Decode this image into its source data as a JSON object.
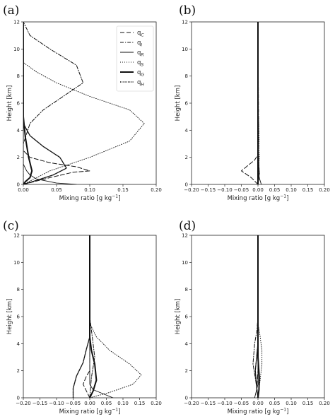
{
  "chart_data": [
    {
      "type": "line",
      "panel_label": "(a)",
      "xlabel": "Mixing ratio [g kg",
      "xlabel_sup": "−1",
      "xlabel_end": "]",
      "ylabel": "Height [km]",
      "xlim": [
        0.0,
        0.2
      ],
      "ylim": [
        0,
        12
      ],
      "xticks": [
        0.0,
        0.05,
        0.1,
        0.15,
        0.2
      ],
      "xtick_labels": [
        "0.00",
        "0.05",
        "0.10",
        "0.15",
        "0.20"
      ],
      "yticks": [
        0,
        2,
        4,
        6,
        8,
        10,
        12
      ],
      "ytick_labels": [
        "0",
        "2",
        "4",
        "6",
        "8",
        "10",
        "12"
      ],
      "legend": "top-right",
      "series": [
        {
          "name": "q",
          "sub": "C",
          "style": "dashed",
          "points": [
            [
              0.0,
              0
            ],
            [
              0.04,
              0.5
            ],
            [
              0.075,
              0.9
            ],
            [
              0.1,
              1.0
            ],
            [
              0.08,
              1.3
            ],
            [
              0.04,
              1.6
            ],
            [
              0.01,
              2.0
            ],
            [
              0.0,
              2.5
            ],
            [
              0.0,
              12
            ]
          ]
        },
        {
          "name": "q",
          "sub": "I",
          "style": "dashdot",
          "points": [
            [
              0.0,
              0
            ],
            [
              0.0,
              3
            ],
            [
              0.01,
              4.5
            ],
            [
              0.03,
              5.5
            ],
            [
              0.06,
              6.5
            ],
            [
              0.09,
              7.5
            ],
            [
              0.08,
              8.8
            ],
            [
              0.04,
              10.0
            ],
            [
              0.01,
              11.0
            ],
            [
              0.0,
              12
            ]
          ]
        },
        {
          "name": "q",
          "sub": "R",
          "style": "solid-thin",
          "points": [
            [
              0.08,
              0
            ],
            [
              0.05,
              0.1
            ],
            [
              0.02,
              0.4
            ],
            [
              0.01,
              0.7
            ],
            [
              0.005,
              1.0
            ],
            [
              0.0,
              1.5
            ],
            [
              0.0,
              12
            ]
          ]
        },
        {
          "name": "q",
          "sub": "S",
          "style": "dotted",
          "points": [
            [
              0.0,
              0
            ],
            [
              0.04,
              1.0
            ],
            [
              0.1,
              2.0
            ],
            [
              0.16,
              3.2
            ],
            [
              0.182,
              4.5
            ],
            [
              0.16,
              5.5
            ],
            [
              0.1,
              6.5
            ],
            [
              0.05,
              7.5
            ],
            [
              0.02,
              8.3
            ],
            [
              0.0,
              9.0
            ],
            [
              0.0,
              12
            ]
          ]
        },
        {
          "name": "q",
          "sub": "G",
          "style": "solid-thick",
          "points": [
            [
              0.0,
              0
            ],
            [
              0.003,
              0.2
            ],
            [
              0.01,
              0.5
            ],
            [
              0.013,
              1.0
            ],
            [
              0.008,
              2.0
            ],
            [
              0.003,
              3.5
            ],
            [
              0.0,
              5.0
            ],
            [
              0.0,
              12
            ]
          ]
        },
        {
          "name": "q",
          "sub": "H",
          "style": "densedot",
          "points": [
            [
              0.0,
              0
            ],
            [
              0.02,
              0.3
            ],
            [
              0.045,
              0.7
            ],
            [
              0.065,
              1.2
            ],
            [
              0.055,
              2.0
            ],
            [
              0.03,
              2.8
            ],
            [
              0.01,
              3.6
            ],
            [
              0.0,
              4.5
            ],
            [
              0.0,
              12
            ]
          ]
        }
      ]
    },
    {
      "type": "line",
      "panel_label": "(b)",
      "xlabel": "Mixing ratio [g kg",
      "xlabel_sup": "−1",
      "xlabel_end": "]",
      "ylabel": "Height [km]",
      "xlim": [
        -0.2,
        0.2
      ],
      "ylim": [
        0,
        12
      ],
      "xticks": [
        -0.2,
        -0.15,
        -0.1,
        -0.05,
        0.0,
        0.05,
        0.1,
        0.15,
        0.2
      ],
      "xtick_labels": [
        "−0.20",
        "−0.15",
        "−0.10",
        "−0.05",
        "0.00",
        "0.05",
        "0.10",
        "0.15",
        "0.20"
      ],
      "yticks": [
        0,
        2,
        4,
        6,
        8,
        10,
        12
      ],
      "ytick_labels": [
        "0",
        "2",
        "4",
        "6",
        "8",
        "10",
        "12"
      ],
      "series": [
        {
          "name": "q",
          "sub": "C",
          "style": "dashed",
          "points": [
            [
              0.0,
              0
            ],
            [
              -0.02,
              0.5
            ],
            [
              -0.05,
              1.0
            ],
            [
              -0.03,
              1.4
            ],
            [
              -0.01,
              1.8
            ],
            [
              0.0,
              2.2
            ],
            [
              0.0,
              12
            ]
          ]
        },
        {
          "name": "q",
          "sub": "I",
          "style": "dashdot",
          "points": [
            [
              0.0,
              0
            ],
            [
              0.002,
              4
            ],
            [
              0.0,
              12
            ]
          ]
        },
        {
          "name": "q",
          "sub": "R",
          "style": "solid-thin",
          "points": [
            [
              0.01,
              0
            ],
            [
              0.005,
              0.4
            ],
            [
              0.0,
              1.0
            ],
            [
              0.0,
              12
            ]
          ]
        },
        {
          "name": "q",
          "sub": "S",
          "style": "dotted",
          "points": [
            [
              0.0,
              0
            ],
            [
              0.004,
              2.0
            ],
            [
              0.003,
              4.0
            ],
            [
              0.0,
              6.0
            ],
            [
              0.0,
              12
            ]
          ]
        },
        {
          "name": "q",
          "sub": "G",
          "style": "solid-thick",
          "points": [
            [
              0.0,
              0
            ],
            [
              0.0,
              12
            ]
          ]
        },
        {
          "name": "q",
          "sub": "H",
          "style": "densedot",
          "points": [
            [
              0.0,
              0
            ],
            [
              0.004,
              0.8
            ],
            [
              0.002,
              1.6
            ],
            [
              0.0,
              3.0
            ],
            [
              0.0,
              12
            ]
          ]
        }
      ]
    },
    {
      "type": "line",
      "panel_label": "(c)",
      "xlabel": "Mixing ratio [g kg",
      "xlabel_sup": "−1",
      "xlabel_end": "]",
      "ylabel": "Height [km]",
      "xlim": [
        -0.2,
        0.2
      ],
      "ylim": [
        0,
        12
      ],
      "xticks": [
        -0.2,
        -0.15,
        -0.1,
        -0.05,
        0.0,
        0.05,
        0.1,
        0.15,
        0.2
      ],
      "xtick_labels": [
        "−0.20",
        "−0.15",
        "−0.10",
        "−0.05",
        "0.00",
        "0.05",
        "0.10",
        "0.15",
        "0.20"
      ],
      "yticks": [
        0,
        2,
        4,
        6,
        8,
        10,
        12
      ],
      "ytick_labels": [
        "0",
        "2",
        "4",
        "6",
        "8",
        "10",
        "12"
      ],
      "series": [
        {
          "name": "q",
          "sub": "C",
          "style": "dashed",
          "points": [
            [
              0.0,
              0
            ],
            [
              -0.01,
              0.5
            ],
            [
              -0.02,
              1.0
            ],
            [
              -0.01,
              1.6
            ],
            [
              0.0,
              2.0
            ],
            [
              0.0,
              12
            ]
          ]
        },
        {
          "name": "q",
          "sub": "I",
          "style": "dashdot",
          "points": [
            [
              0.0,
              0
            ],
            [
              0.005,
              1.5
            ],
            [
              0.015,
              3.0
            ],
            [
              0.01,
              4.0
            ],
            [
              0.005,
              5.0
            ],
            [
              0.0,
              6.0
            ],
            [
              0.0,
              12
            ]
          ]
        },
        {
          "name": "q",
          "sub": "R",
          "style": "solid-thin",
          "points": [
            [
              0.07,
              0
            ],
            [
              0.04,
              0.3
            ],
            [
              0.01,
              0.6
            ],
            [
              0.0,
              1.0
            ],
            [
              0.0,
              12
            ]
          ]
        },
        {
          "name": "q",
          "sub": "S",
          "style": "dotted",
          "points": [
            [
              0.0,
              0
            ],
            [
              0.06,
              0.4
            ],
            [
              0.13,
              1.0
            ],
            [
              0.155,
              1.7
            ],
            [
              0.12,
              2.5
            ],
            [
              0.06,
              3.5
            ],
            [
              0.02,
              4.5
            ],
            [
              0.0,
              5.5
            ],
            [
              0.0,
              12
            ]
          ]
        },
        {
          "name": "q",
          "sub": "G",
          "style": "solid-thick",
          "points": [
            [
              0.0,
              0
            ],
            [
              0.01,
              0.5
            ],
            [
              0.02,
              1.3
            ],
            [
              0.015,
              2.5
            ],
            [
              0.005,
              3.5
            ],
            [
              0.0,
              4.5
            ],
            [
              0.0,
              12
            ]
          ]
        },
        {
          "name": "q",
          "sub": "H",
          "style": "densedot",
          "points": [
            [
              -0.05,
              0
            ],
            [
              -0.05,
              0.7
            ],
            [
              -0.04,
              1.6
            ],
            [
              -0.02,
              2.6
            ],
            [
              -0.01,
              3.6
            ],
            [
              0.0,
              4.5
            ],
            [
              0.0,
              12
            ]
          ]
        }
      ]
    },
    {
      "type": "line",
      "panel_label": "(d)",
      "xlabel": "Mixing ratio [g kg",
      "xlabel_sup": "−1",
      "xlabel_end": "]",
      "ylabel": "Height [km]",
      "xlim": [
        -0.2,
        0.2
      ],
      "ylim": [
        0,
        12
      ],
      "xticks": [
        -0.2,
        -0.15,
        -0.1,
        -0.05,
        0.0,
        0.05,
        0.1,
        0.15,
        0.2
      ],
      "xtick_labels": [
        "−0.20",
        "−0.15",
        "−0.10",
        "−0.05",
        "0.00",
        "0.05",
        "0.10",
        "0.15",
        "0.20"
      ],
      "yticks": [
        0,
        2,
        4,
        6,
        8,
        10,
        12
      ],
      "ytick_labels": [
        "0",
        "2",
        "4",
        "6",
        "8",
        "10",
        "12"
      ],
      "series": [
        {
          "name": "q",
          "sub": "C",
          "style": "dashed",
          "points": [
            [
              0.0,
              0
            ],
            [
              -0.004,
              0.8
            ],
            [
              0.0,
              2.0
            ],
            [
              0.0,
              12
            ]
          ]
        },
        {
          "name": "q",
          "sub": "I",
          "style": "dashdot",
          "points": [
            [
              0.0,
              0
            ],
            [
              -0.005,
              1.0
            ],
            [
              -0.015,
              2.5
            ],
            [
              -0.01,
              4.0
            ],
            [
              -0.003,
              5.0
            ],
            [
              0.0,
              6.0
            ],
            [
              0.0,
              12
            ]
          ]
        },
        {
          "name": "q",
          "sub": "R",
          "style": "solid-thin",
          "points": [
            [
              -0.01,
              0
            ],
            [
              -0.005,
              0.5
            ],
            [
              0.0,
              1.0
            ],
            [
              0.0,
              12
            ]
          ]
        },
        {
          "name": "q",
          "sub": "S",
          "style": "dotted",
          "points": [
            [
              0.0,
              0
            ],
            [
              0.005,
              1.0
            ],
            [
              0.012,
              2.5
            ],
            [
              0.012,
              3.5
            ],
            [
              0.005,
              4.8
            ],
            [
              0.0,
              5.5
            ],
            [
              0.0,
              12
            ]
          ]
        },
        {
          "name": "q",
          "sub": "G",
          "style": "solid-thick",
          "points": [
            [
              0.0,
              0
            ],
            [
              0.003,
              0.6
            ],
            [
              0.004,
              1.5
            ],
            [
              0.0,
              3.0
            ],
            [
              0.0,
              12
            ]
          ]
        },
        {
          "name": "q",
          "sub": "H",
          "style": "densedot",
          "points": [
            [
              0.0,
              0
            ],
            [
              -0.005,
              1.0
            ],
            [
              -0.008,
              2.0
            ],
            [
              -0.004,
              3.0
            ],
            [
              0.0,
              4.0
            ],
            [
              0.0,
              12
            ]
          ]
        }
      ]
    }
  ]
}
